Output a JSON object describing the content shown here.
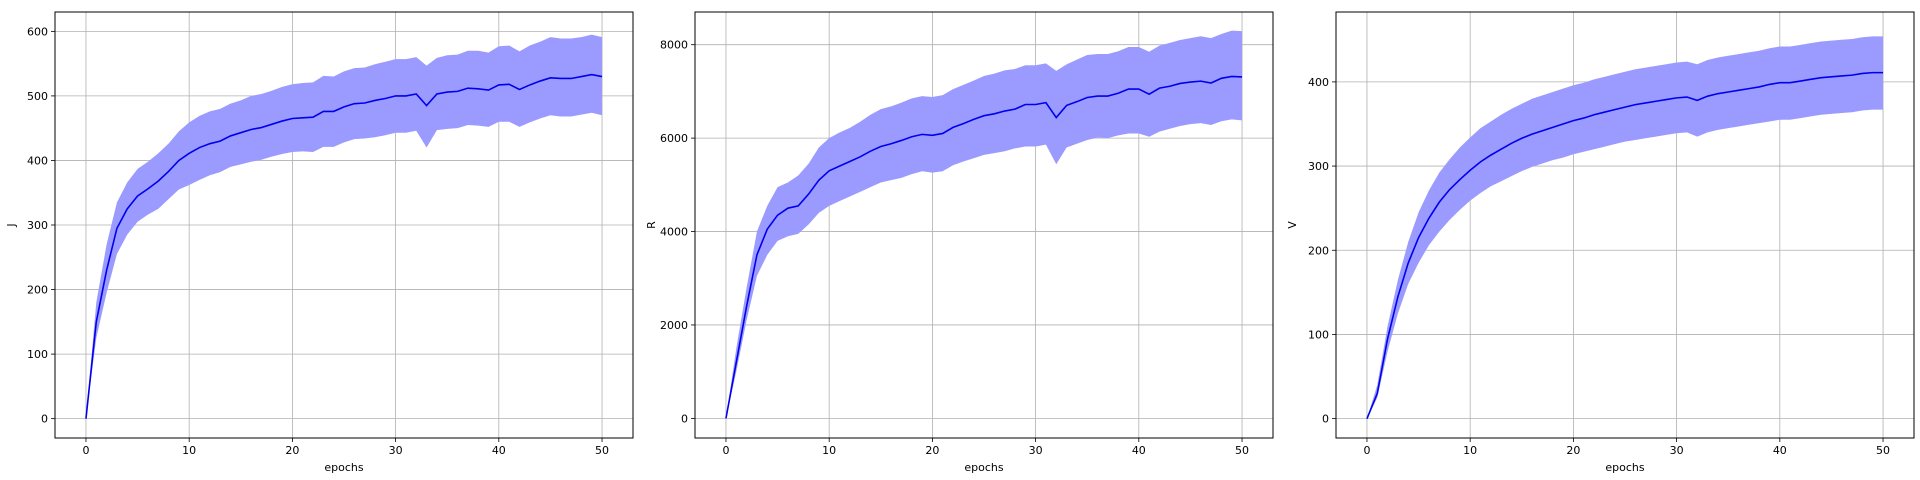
{
  "chart_data": [
    {
      "type": "line",
      "xlabel": "epochs",
      "ylabel": "J",
      "xlim": [
        -3,
        53
      ],
      "ylim": [
        -30,
        630
      ],
      "xticks": [
        0,
        10,
        20,
        30,
        40,
        50
      ],
      "yticks": [
        0,
        100,
        200,
        300,
        400,
        500,
        600
      ],
      "grid": true,
      "legend": "none",
      "colors": {
        "line": "#0000ee",
        "band": "#9b9bff"
      },
      "x": [
        0,
        1,
        2,
        3,
        4,
        5,
        6,
        7,
        8,
        9,
        10,
        11,
        12,
        13,
        14,
        15,
        16,
        17,
        18,
        19,
        20,
        21,
        22,
        23,
        24,
        25,
        26,
        27,
        28,
        29,
        30,
        31,
        32,
        33,
        34,
        35,
        36,
        37,
        38,
        39,
        40,
        41,
        42,
        43,
        44,
        45,
        46,
        47,
        48,
        49,
        50
      ],
      "series": [
        {
          "values": [
            0,
            150,
            230,
            295,
            325,
            345,
            356,
            368,
            383,
            400,
            411,
            420,
            426,
            430,
            438,
            443,
            448,
            451,
            456,
            461,
            465,
            466,
            467,
            476,
            476,
            483,
            488,
            489,
            493,
            496,
            500,
            500,
            503,
            485,
            503,
            506,
            507,
            512,
            511,
            509,
            517,
            518,
            510,
            517,
            523,
            528,
            527,
            527,
            530,
            533,
            530
          ],
          "lower": [
            0,
            125,
            195,
            255,
            285,
            305,
            316,
            325,
            340,
            355,
            362,
            370,
            377,
            382,
            390,
            394,
            398,
            401,
            406,
            410,
            413,
            414,
            413,
            421,
            421,
            428,
            433,
            434,
            436,
            439,
            443,
            443,
            446,
            420,
            447,
            449,
            450,
            455,
            454,
            452,
            460,
            460,
            452,
            459,
            465,
            470,
            468,
            468,
            471,
            474,
            470
          ],
          "upper": [
            0,
            180,
            270,
            335,
            366,
            387,
            398,
            411,
            426,
            445,
            459,
            469,
            476,
            480,
            488,
            493,
            500,
            503,
            508,
            514,
            518,
            520,
            521,
            531,
            530,
            538,
            543,
            544,
            549,
            553,
            557,
            557,
            560,
            547,
            559,
            563,
            564,
            570,
            570,
            567,
            577,
            578,
            569,
            578,
            584,
            591,
            589,
            589,
            591,
            595,
            591
          ]
        }
      ]
    },
    {
      "type": "line",
      "xlabel": "epochs",
      "ylabel": "R",
      "xlim": [
        -3,
        53
      ],
      "ylim": [
        -420,
        8700
      ],
      "xticks": [
        0,
        10,
        20,
        30,
        40,
        50
      ],
      "yticks": [
        0,
        2000,
        4000,
        6000,
        8000
      ],
      "grid": true,
      "legend": "none",
      "colors": {
        "line": "#0000ee",
        "band": "#9b9bff"
      },
      "x": [
        0,
        1,
        2,
        3,
        4,
        5,
        6,
        7,
        8,
        9,
        10,
        11,
        12,
        13,
        14,
        15,
        16,
        17,
        18,
        19,
        20,
        21,
        22,
        23,
        24,
        25,
        26,
        27,
        28,
        29,
        30,
        31,
        32,
        33,
        34,
        35,
        36,
        37,
        38,
        39,
        40,
        41,
        42,
        43,
        44,
        45,
        46,
        47,
        48,
        49,
        50
      ],
      "series": [
        {
          "values": [
            0,
            1200,
            2400,
            3500,
            4050,
            4350,
            4500,
            4550,
            4800,
            5100,
            5300,
            5400,
            5500,
            5600,
            5720,
            5820,
            5880,
            5950,
            6030,
            6080,
            6060,
            6100,
            6230,
            6310,
            6400,
            6480,
            6520,
            6580,
            6620,
            6720,
            6720,
            6760,
            6440,
            6700,
            6780,
            6870,
            6900,
            6900,
            6960,
            7050,
            7050,
            6940,
            7070,
            7110,
            7170,
            7200,
            7220,
            7180,
            7280,
            7320,
            7310
          ],
          "lower": [
            0,
            1000,
            2100,
            3050,
            3500,
            3800,
            3900,
            3950,
            4150,
            4400,
            4550,
            4650,
            4750,
            4850,
            4950,
            5050,
            5100,
            5150,
            5230,
            5290,
            5260,
            5290,
            5420,
            5500,
            5570,
            5640,
            5680,
            5720,
            5780,
            5820,
            5820,
            5860,
            5440,
            5800,
            5880,
            5960,
            6010,
            6000,
            6060,
            6100,
            6100,
            6030,
            6140,
            6200,
            6260,
            6300,
            6320,
            6280,
            6360,
            6400,
            6380
          ],
          "upper": [
            0,
            1500,
            2800,
            4000,
            4550,
            4950,
            5050,
            5200,
            5450,
            5800,
            6000,
            6120,
            6220,
            6350,
            6500,
            6620,
            6680,
            6760,
            6850,
            6900,
            6880,
            6920,
            7050,
            7140,
            7230,
            7330,
            7380,
            7450,
            7480,
            7560,
            7560,
            7600,
            7440,
            7580,
            7680,
            7780,
            7800,
            7800,
            7860,
            7950,
            7950,
            7850,
            7980,
            8040,
            8100,
            8140,
            8180,
            8140,
            8230,
            8300,
            8290
          ]
        }
      ]
    },
    {
      "type": "line",
      "xlabel": "epochs",
      "ylabel": "V",
      "xlim": [
        -3,
        53
      ],
      "ylim": [
        -23,
        483
      ],
      "xticks": [
        0,
        10,
        20,
        30,
        40,
        50
      ],
      "yticks": [
        0,
        100,
        200,
        300,
        400
      ],
      "grid": true,
      "legend": "none",
      "colors": {
        "line": "#0000ee",
        "band": "#9b9bff"
      },
      "x": [
        0,
        1,
        2,
        3,
        4,
        5,
        6,
        7,
        8,
        9,
        10,
        11,
        12,
        13,
        14,
        15,
        16,
        17,
        18,
        19,
        20,
        21,
        22,
        23,
        24,
        25,
        26,
        27,
        28,
        29,
        30,
        31,
        32,
        33,
        34,
        35,
        36,
        37,
        38,
        39,
        40,
        41,
        42,
        43,
        44,
        45,
        46,
        47,
        48,
        49,
        50
      ],
      "series": [
        {
          "values": [
            0,
            30,
            95,
            145,
            185,
            215,
            238,
            257,
            272,
            284,
            295,
            305,
            313,
            320,
            327,
            333,
            338,
            342,
            346,
            350,
            354,
            357,
            361,
            364,
            367,
            370,
            373,
            375,
            377,
            379,
            381,
            382,
            378,
            383,
            386,
            388,
            390,
            392,
            394,
            397,
            399,
            399,
            401,
            403,
            405,
            406,
            407,
            408,
            410,
            411,
            411
          ],
          "lower": [
            0,
            25,
            80,
            125,
            160,
            185,
            206,
            222,
            236,
            248,
            259,
            268,
            276,
            282,
            288,
            294,
            299,
            303,
            307,
            310,
            314,
            317,
            320,
            323,
            326,
            329,
            331,
            333,
            335,
            337,
            339,
            340,
            335,
            340,
            343,
            345,
            347,
            349,
            351,
            353,
            355,
            355,
            357,
            359,
            361,
            362,
            363,
            364,
            366,
            367,
            367
          ],
          "upper": [
            0,
            40,
            110,
            165,
            210,
            245,
            271,
            292,
            308,
            322,
            334,
            345,
            353,
            361,
            368,
            374,
            380,
            384,
            388,
            392,
            396,
            399,
            403,
            406,
            409,
            412,
            415,
            417,
            419,
            421,
            423,
            424,
            421,
            426,
            429,
            431,
            433,
            435,
            437,
            440,
            442,
            442,
            444,
            446,
            448,
            449,
            450,
            451,
            453,
            454,
            454
          ]
        }
      ]
    }
  ]
}
